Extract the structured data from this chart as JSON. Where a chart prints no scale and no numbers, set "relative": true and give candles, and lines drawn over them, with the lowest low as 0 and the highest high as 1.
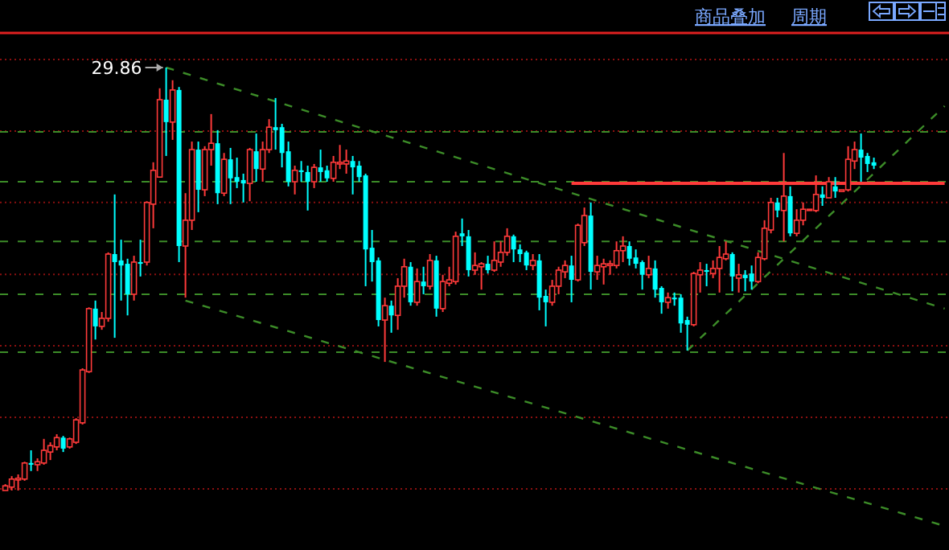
{
  "chart_data": {
    "type": "candlestick",
    "relative": true,
    "categories": [
      null,
      null,
      null,
      null,
      null,
      null,
      null,
      null,
      null,
      null,
      null,
      null,
      null,
      null,
      null,
      null,
      null,
      null,
      null,
      null,
      null,
      null,
      null,
      null,
      null,
      null,
      null,
      null,
      null,
      null,
      null,
      null,
      null,
      null,
      null,
      null,
      null,
      null,
      null,
      null,
      null,
      null,
      null,
      null,
      null,
      null,
      null,
      null,
      null,
      null,
      null,
      null,
      null,
      null,
      null,
      null,
      null,
      null,
      null,
      null,
      null,
      null,
      null,
      null,
      null,
      null,
      null,
      null,
      null,
      null,
      null,
      null,
      null,
      null,
      null,
      null,
      null,
      null,
      null,
      null,
      null,
      null,
      null,
      null,
      null,
      null,
      null,
      null,
      null,
      null,
      null,
      null,
      null,
      null,
      null,
      null,
      null,
      null,
      null,
      null,
      null,
      null,
      null,
      null,
      null,
      null,
      null,
      null,
      null,
      null,
      null,
      null,
      null,
      null,
      null,
      null,
      null,
      null,
      null,
      null,
      null,
      null,
      null,
      null,
      null,
      null,
      null,
      null,
      null,
      null,
      null,
      null,
      null,
      null,
      null,
      null,
      null,
      null,
      null,
      null,
      null,
      null,
      null,
      null,
      null,
      null,
      null
    ],
    "ohlc": [
      [
        0,
        0.015,
        0,
        0.011
      ],
      [
        0.008,
        0.034,
        0,
        0.027
      ],
      [
        0.025,
        0.038,
        0,
        0.029
      ],
      [
        0.027,
        0.068,
        0.023,
        0.065
      ],
      [
        0.065,
        0.095,
        0.046,
        0.061
      ],
      [
        0.061,
        0.076,
        0.046,
        0.068
      ],
      [
        0.065,
        0.122,
        0.061,
        0.095
      ],
      [
        0.091,
        0.114,
        0.072,
        0.106
      ],
      [
        0.103,
        0.133,
        0.095,
        0.125
      ],
      [
        0.125,
        0.129,
        0.091,
        0.099
      ],
      [
        0.103,
        0.125,
        0.099,
        0.122
      ],
      [
        0.114,
        0.171,
        0.11,
        0.167
      ],
      [
        0.16,
        0.289,
        0.156,
        0.285
      ],
      [
        0.281,
        0.433,
        0.278,
        0.43
      ],
      [
        0.43,
        0.449,
        0.357,
        0.388
      ],
      [
        0.388,
        0.422,
        0.38,
        0.407
      ],
      [
        0.407,
        0.563,
        0.399,
        0.559
      ],
      [
        0.559,
        0.7,
        0.361,
        0.54
      ],
      [
        0.544,
        0.593,
        0.449,
        0.532
      ],
      [
        0.536,
        0.548,
        0.414,
        0.464
      ],
      [
        0.464,
        0.555,
        0.449,
        0.54
      ],
      [
        0.54,
        0.593,
        0.506,
        0.536
      ],
      [
        0.54,
        0.684,
        0.532,
        0.681
      ],
      [
        0.677,
        0.776,
        0.62,
        0.757
      ],
      [
        0.741,
        0.951,
        0.741,
        0.924
      ],
      [
        0.924,
        1,
        0.791,
        0.871
      ],
      [
        0.871,
        0.97,
        0.829,
        0.947
      ],
      [
        0.947,
        0.954,
        0.54,
        0.578
      ],
      [
        0.578,
        0.703,
        0.456,
        0.639
      ],
      [
        0.639,
        0.825,
        0.616,
        0.806
      ],
      [
        0.806,
        0.825,
        0.658,
        0.711
      ],
      [
        0.711,
        0.814,
        0.696,
        0.806
      ],
      [
        0.806,
        0.89,
        0.768,
        0.821
      ],
      [
        0.821,
        0.852,
        0.677,
        0.703
      ],
      [
        0.703,
        0.798,
        0.696,
        0.783
      ],
      [
        0.783,
        0.81,
        0.677,
        0.738
      ],
      [
        0.741,
        0.787,
        0.715,
        0.73
      ],
      [
        0.734,
        0.749,
        0.681,
        0.726
      ],
      [
        0.726,
        0.81,
        0.684,
        0.806
      ],
      [
        0.802,
        0.844,
        0.73,
        0.76
      ],
      [
        0.76,
        0.825,
        0.73,
        0.806
      ],
      [
        0.806,
        0.878,
        0.798,
        0.859
      ],
      [
        0.859,
        0.928,
        0.806,
        0.852
      ],
      [
        0.859,
        0.867,
        0.764,
        0.798
      ],
      [
        0.802,
        0.825,
        0.719,
        0.73
      ],
      [
        0.73,
        0.768,
        0.7,
        0.757
      ],
      [
        0.757,
        0.779,
        0.73,
        0.753
      ],
      [
        0.753,
        0.768,
        0.662,
        0.73
      ],
      [
        0.73,
        0.772,
        0.715,
        0.764
      ],
      [
        0.764,
        0.806,
        0.73,
        0.753
      ],
      [
        0.757,
        0.768,
        0.73,
        0.738
      ],
      [
        0.738,
        0.791,
        0.73,
        0.776
      ],
      [
        0.772,
        0.817,
        0.76,
        0.776
      ],
      [
        0.772,
        0.806,
        0.749,
        0.779
      ],
      [
        0.779,
        0.791,
        0.7,
        0.764
      ],
      [
        0.768,
        0.779,
        0.73,
        0.741
      ],
      [
        0.745,
        0.749,
        0.483,
        0.57
      ],
      [
        0.574,
        0.616,
        0.494,
        0.54
      ],
      [
        0.544,
        0.551,
        0.388,
        0.403
      ],
      [
        0.403,
        0.456,
        0.304,
        0.437
      ],
      [
        0.437,
        0.449,
        0.373,
        0.414
      ],
      [
        0.414,
        0.502,
        0.38,
        0.483
      ],
      [
        0.483,
        0.548,
        0.456,
        0.529
      ],
      [
        0.529,
        0.54,
        0.437,
        0.445
      ],
      [
        0.445,
        0.525,
        0.437,
        0.494
      ],
      [
        0.494,
        0.529,
        0.464,
        0.483
      ],
      [
        0.483,
        0.559,
        0.475,
        0.544
      ],
      [
        0.544,
        0.555,
        0.411,
        0.43
      ],
      [
        0.43,
        0.51,
        0.422,
        0.494
      ],
      [
        0.49,
        0.529,
        0.483,
        0.498
      ],
      [
        0.494,
        0.612,
        0.487,
        0.601
      ],
      [
        0.608,
        0.643,
        0.578,
        0.601
      ],
      [
        0.601,
        0.616,
        0.506,
        0.521
      ],
      [
        0.521,
        0.563,
        0.51,
        0.532
      ],
      [
        0.529,
        0.54,
        0.475,
        0.536
      ],
      [
        0.536,
        0.555,
        0.513,
        0.521
      ],
      [
        0.521,
        0.589,
        0.517,
        0.544
      ],
      [
        0.54,
        0.589,
        0.529,
        0.563
      ],
      [
        0.563,
        0.62,
        0.555,
        0.601
      ],
      [
        0.601,
        0.605,
        0.54,
        0.57
      ],
      [
        0.57,
        0.582,
        0.54,
        0.559
      ],
      [
        0.563,
        0.567,
        0.521,
        0.532
      ],
      [
        0.532,
        0.559,
        0.521,
        0.544
      ],
      [
        0.544,
        0.559,
        0.426,
        0.456
      ],
      [
        0.46,
        0.475,
        0.388,
        0.445
      ],
      [
        0.445,
        0.498,
        0.437,
        0.483
      ],
      [
        0.483,
        0.529,
        0.464,
        0.521
      ],
      [
        0.517,
        0.544,
        0.502,
        0.532
      ],
      [
        0.532,
        0.555,
        0.445,
        0.498
      ],
      [
        0.498,
        0.631,
        0.494,
        0.627
      ],
      [
        0.586,
        0.669,
        0.578,
        0.65
      ],
      [
        0.65,
        0.681,
        0.475,
        0.517
      ],
      [
        0.517,
        0.555,
        0.498,
        0.532
      ],
      [
        0.529,
        0.548,
        0.487,
        0.536
      ],
      [
        0.532,
        0.544,
        0.51,
        0.536
      ],
      [
        0.532,
        0.589,
        0.525,
        0.567
      ],
      [
        0.567,
        0.601,
        0.54,
        0.578
      ],
      [
        0.578,
        0.589,
        0.532,
        0.548
      ],
      [
        0.551,
        0.57,
        0.525,
        0.536
      ],
      [
        0.54,
        0.544,
        0.475,
        0.51
      ],
      [
        0.51,
        0.555,
        0.502,
        0.525
      ],
      [
        0.525,
        0.544,
        0.456,
        0.475
      ],
      [
        0.479,
        0.483,
        0.418,
        0.445
      ],
      [
        0.445,
        0.468,
        0.43,
        0.456
      ],
      [
        0.456,
        0.468,
        0.437,
        0.452
      ],
      [
        0.456,
        0.464,
        0.373,
        0.395
      ],
      [
        0.403,
        0.411,
        0.331,
        0.392
      ],
      [
        0.392,
        0.517,
        0.388,
        0.513
      ],
      [
        0.51,
        0.54,
        0.468,
        0.521
      ],
      [
        0.521,
        0.536,
        0.483,
        0.517
      ],
      [
        0.513,
        0.544,
        0.502,
        0.525
      ],
      [
        0.525,
        0.578,
        0.468,
        0.551
      ],
      [
        0.548,
        0.589,
        0.544,
        0.559
      ],
      [
        0.559,
        0.563,
        0.471,
        0.506
      ],
      [
        0.502,
        0.536,
        0.468,
        0.51
      ],
      [
        0.51,
        0.521,
        0.471,
        0.502
      ],
      [
        0.513,
        0.532,
        0.475,
        0.494
      ],
      [
        0.494,
        0.563,
        0.49,
        0.551
      ],
      [
        0.548,
        0.639,
        0.544,
        0.62
      ],
      [
        0.616,
        0.692,
        0.608,
        0.681
      ],
      [
        0.681,
        0.692,
        0.646,
        0.662
      ],
      [
        0.662,
        0.798,
        0.589,
        0.696
      ],
      [
        0.696,
        0.719,
        0.601,
        0.608
      ],
      [
        0.608,
        0.665,
        0.601,
        0.639
      ],
      [
        0.639,
        0.681,
        0.627,
        0.665
      ],
      [
        0.663,
        0.665,
        0.662,
        0.665
      ],
      [
        0.662,
        0.745,
        0.658,
        0.7
      ],
      [
        0.7,
        0.719,
        0.673,
        0.692
      ],
      [
        0.692,
        0.741,
        0.692,
        0.73
      ],
      [
        0.719,
        0.741,
        0.692,
        0.707
      ],
      [
        0.707,
        0.711,
        0.707,
        0.711
      ],
      [
        0.711,
        0.814,
        0.707,
        0.783
      ],
      [
        0.779,
        0.825,
        0.76,
        0.806
      ],
      [
        0.806,
        0.844,
        0.73,
        0.787
      ],
      [
        0.791,
        0.798,
        0.753,
        0.772
      ],
      [
        0.776,
        0.787,
        0.76,
        0.768
      ],
      null,
      null,
      null,
      null,
      null,
      null,
      null,
      null,
      null,
      null,
      null
    ],
    "series": [
      {
        "type": "line",
        "color": "#3c8c28",
        "line_style": "dashed",
        "values": [
          null,
          null,
          null,
          null,
          null,
          null,
          null,
          null,
          null,
          null,
          null,
          null,
          null,
          null,
          null,
          null,
          null,
          null,
          null,
          null,
          null,
          null,
          null,
          null,
          null,
          1,
          null,
          null,
          null,
          null,
          null,
          null,
          null,
          null,
          null,
          null,
          null,
          null,
          null,
          null,
          null,
          null,
          null,
          null,
          null,
          null,
          null,
          null,
          null,
          null,
          null,
          null,
          null,
          null,
          null,
          null,
          null,
          null,
          null,
          null,
          null,
          null,
          null,
          null,
          null,
          null,
          null,
          null,
          null,
          null,
          null,
          null,
          null,
          null,
          null,
          null,
          null,
          null,
          null,
          null,
          null,
          null,
          null,
          null,
          null,
          null,
          null,
          null,
          null,
          null,
          null,
          null,
          null,
          null,
          null,
          null,
          null,
          null,
          null,
          null,
          null,
          null,
          null,
          null,
          null,
          null,
          null,
          null,
          null,
          null,
          null,
          null,
          null,
          null,
          null,
          null,
          null,
          null,
          null,
          null,
          null,
          null,
          null,
          null,
          null,
          null,
          null,
          null,
          null,
          null,
          null,
          null,
          null,
          null,
          null,
          null,
          null,
          null,
          null,
          null,
          null,
          null,
          null,
          null,
          null,
          null,
          0.43
        ]
      },
      {
        "type": "line",
        "color": "#3c8c28",
        "line_style": "dashed",
        "values": [
          null,
          null,
          null,
          null,
          null,
          null,
          null,
          null,
          null,
          null,
          null,
          null,
          null,
          null,
          null,
          null,
          null,
          null,
          null,
          null,
          null,
          null,
          null,
          null,
          null,
          null,
          null,
          null,
          0.449,
          null,
          null,
          null,
          null,
          null,
          null,
          null,
          null,
          null,
          null,
          null,
          null,
          null,
          null,
          null,
          null,
          null,
          null,
          null,
          null,
          null,
          null,
          null,
          null,
          null,
          null,
          null,
          null,
          null,
          null,
          null,
          null,
          null,
          null,
          null,
          null,
          null,
          null,
          null,
          null,
          null,
          null,
          null,
          null,
          null,
          null,
          null,
          null,
          null,
          null,
          null,
          null,
          null,
          null,
          null,
          null,
          null,
          null,
          null,
          null,
          null,
          null,
          null,
          null,
          null,
          null,
          null,
          null,
          null,
          null,
          null,
          null,
          null,
          null,
          null,
          null,
          null,
          null,
          null,
          null,
          null,
          null,
          null,
          null,
          null,
          null,
          null,
          null,
          null,
          null,
          null,
          null,
          null,
          null,
          null,
          null,
          null,
          null,
          null,
          null,
          null,
          null,
          null,
          null,
          null,
          null,
          null,
          null,
          null,
          null,
          null,
          null,
          null,
          null,
          null,
          null,
          null,
          -0.084
        ]
      },
      {
        "type": "line",
        "color": "#3c8c28",
        "line_style": "dashed",
        "values": [
          null,
          null,
          null,
          null,
          null,
          null,
          null,
          null,
          null,
          null,
          null,
          null,
          null,
          null,
          null,
          null,
          null,
          null,
          null,
          null,
          null,
          null,
          null,
          null,
          null,
          null,
          null,
          null,
          null,
          null,
          null,
          null,
          null,
          null,
          null,
          null,
          null,
          null,
          null,
          null,
          null,
          null,
          null,
          null,
          null,
          null,
          null,
          null,
          null,
          null,
          null,
          null,
          null,
          null,
          null,
          null,
          null,
          null,
          null,
          null,
          null,
          null,
          null,
          null,
          null,
          null,
          null,
          null,
          null,
          null,
          null,
          null,
          null,
          null,
          null,
          null,
          null,
          null,
          null,
          null,
          null,
          null,
          null,
          null,
          null,
          null,
          null,
          null,
          null,
          null,
          null,
          null,
          null,
          null,
          null,
          null,
          null,
          null,
          null,
          null,
          null,
          null,
          null,
          null,
          null,
          null,
          0.331,
          null,
          null,
          null,
          null,
          null,
          null,
          null,
          null,
          null,
          null,
          null,
          null,
          null,
          null,
          null,
          null,
          null,
          null,
          null,
          null,
          null,
          null,
          null,
          null,
          null,
          null,
          null,
          null,
          null,
          null,
          null,
          null,
          null,
          null,
          null,
          null,
          null,
          null,
          null,
          0.909
        ]
      },
      {
        "type": "line",
        "color": "#ff3a3a",
        "line_style": "solid",
        "values": [
          null,
          null,
          null,
          null,
          null,
          null,
          null,
          null,
          null,
          null,
          null,
          null,
          null,
          null,
          null,
          null,
          null,
          null,
          null,
          null,
          null,
          null,
          null,
          null,
          null,
          null,
          null,
          null,
          null,
          null,
          null,
          null,
          null,
          null,
          null,
          null,
          null,
          null,
          null,
          null,
          null,
          null,
          null,
          null,
          null,
          null,
          null,
          null,
          null,
          null,
          null,
          null,
          null,
          null,
          null,
          null,
          null,
          null,
          null,
          null,
          null,
          null,
          null,
          null,
          null,
          null,
          null,
          null,
          null,
          null,
          null,
          null,
          null,
          null,
          null,
          null,
          null,
          null,
          null,
          null,
          null,
          null,
          null,
          null,
          null,
          null,
          null,
          null,
          0.726,
          null,
          null,
          null,
          null,
          null,
          null,
          null,
          null,
          null,
          null,
          null,
          null,
          null,
          null,
          null,
          null,
          null,
          null,
          null,
          null,
          null,
          null,
          null,
          null,
          null,
          null,
          null,
          null,
          null,
          null,
          null,
          null,
          null,
          null,
          null,
          null,
          null,
          null,
          null,
          null,
          null,
          null,
          null,
          null,
          null,
          null,
          null,
          null,
          null,
          null,
          null,
          null,
          null,
          null,
          null,
          null,
          null,
          0.726
        ]
      }
    ],
    "ref_lines": [
      {
        "axis": "y",
        "value": 1.019,
        "color": "#8b1010",
        "line_style": "dotted"
      },
      {
        "axis": "y",
        "value": 0.85,
        "color": "#8b1010",
        "line_style": "dotted"
      },
      {
        "axis": "y",
        "value": 0.681,
        "color": "#8b1010",
        "line_style": "dotted"
      },
      {
        "axis": "y",
        "value": 0.511,
        "color": "#8b1010",
        "line_style": "dotted"
      },
      {
        "axis": "y",
        "value": 0.342,
        "color": "#8b1010",
        "line_style": "dotted"
      },
      {
        "axis": "y",
        "value": 0.173,
        "color": "#8b1010",
        "line_style": "dotted"
      },
      {
        "axis": "y",
        "value": 0.004,
        "color": "#8b1010",
        "line_style": "dotted"
      },
      {
        "axis": "y",
        "value": 0.848,
        "color": "#3c8c28",
        "line_style": "dashed"
      },
      {
        "axis": "y",
        "value": 0.73,
        "color": "#3c8c28",
        "line_style": "dashed"
      },
      {
        "axis": "y",
        "value": 0.589,
        "color": "#3c8c28",
        "line_style": "dashed"
      },
      {
        "axis": "y",
        "value": 0.464,
        "color": "#3c8c28",
        "line_style": "dashed"
      },
      {
        "axis": "y",
        "value": 0.327,
        "color": "#3c8c28",
        "line_style": "dashed"
      }
    ],
    "annotations": [
      "29.86",
      "商品叠加",
      "周期"
    ]
  }
}
